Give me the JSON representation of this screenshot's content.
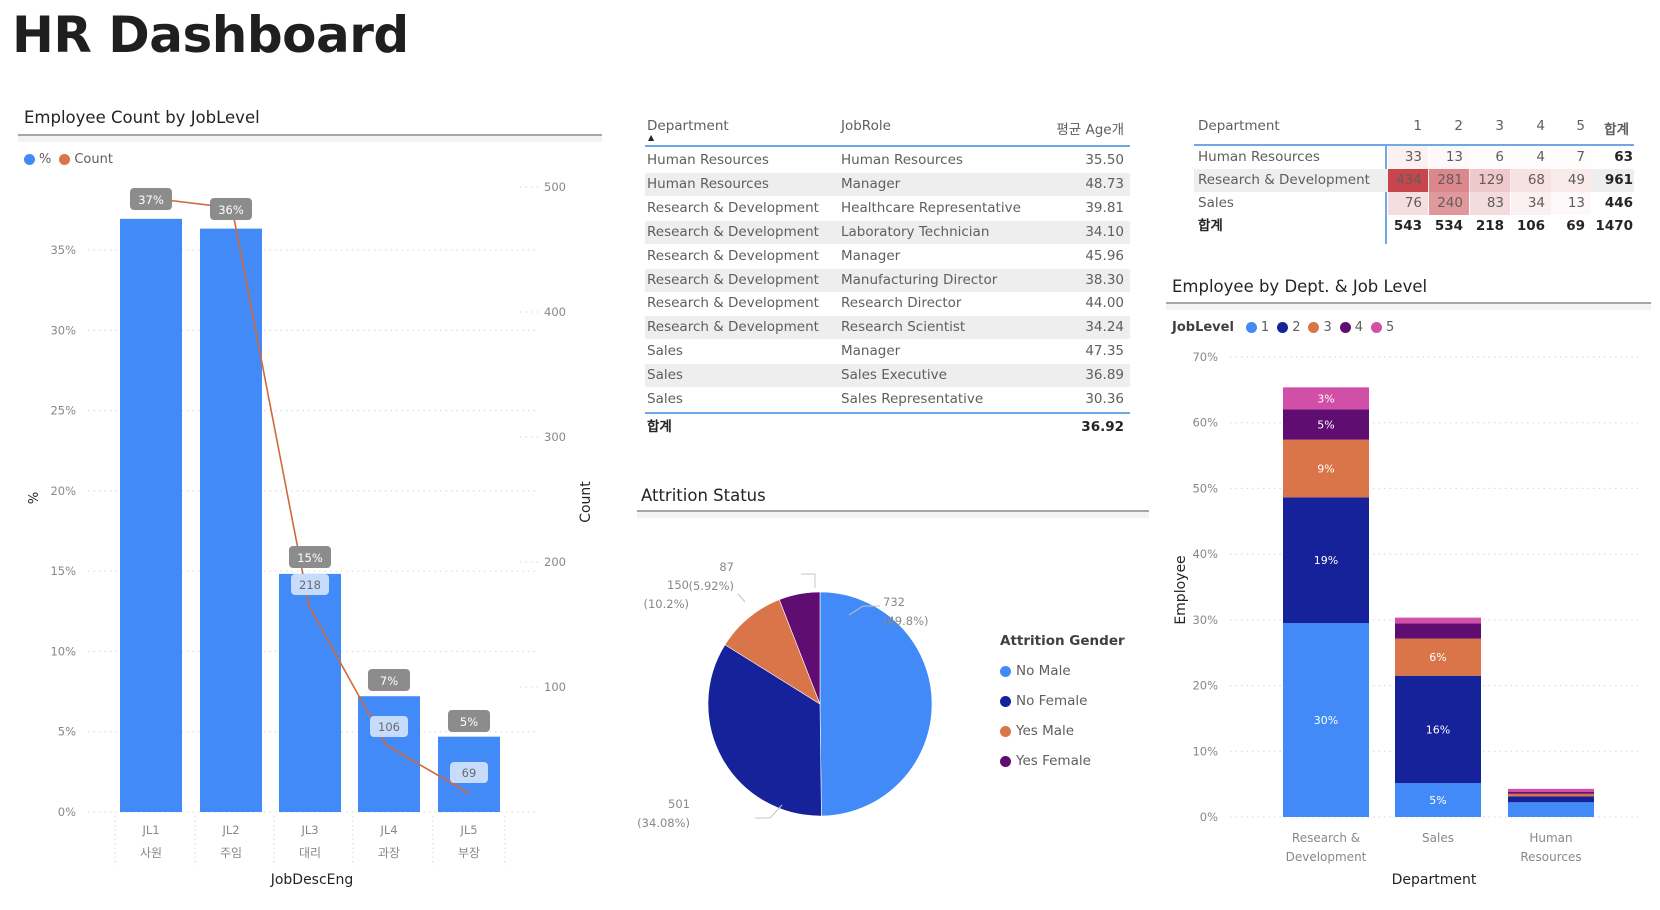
{
  "page": {
    "title": "HR Dashboard"
  },
  "colors": {
    "blue": "#418af7",
    "navy": "#16229a",
    "orange": "#d97548",
    "purple": "#5f0d70",
    "pink": "#d14fa6",
    "line": "#d0693a",
    "heat_max": "#c7454c"
  },
  "chart_data": [
    {
      "id": "jobLevelCombo",
      "type": "bar",
      "title": "Employee Count by JobLevel",
      "legend": [
        {
          "label": "%",
          "color": "#418af7"
        },
        {
          "label": "Count",
          "color": "#d97548"
        }
      ],
      "legend_position": "top-left",
      "categories": [
        "JL1",
        "JL2",
        "JL3",
        "JL4",
        "JL5"
      ],
      "category_sublabels": [
        "사원",
        "주임",
        "대리",
        "과장",
        "부장"
      ],
      "xlabel": "JobDescEng",
      "ylabel": "%",
      "y2label": "Count",
      "ylim": [
        0,
        0.37
      ],
      "y_ticks": [
        "0%",
        "5%",
        "10%",
        "15%",
        "20%",
        "25%",
        "30%",
        "35%"
      ],
      "y2lim": [
        0,
        564
      ],
      "y2_ticks": [
        "100",
        "200",
        "300",
        "400",
        "500"
      ],
      "series": [
        {
          "name": "%",
          "kind": "bar",
          "values": [
            0.3694,
            0.3633,
            0.1483,
            0.0721,
            0.0469
          ],
          "labels": [
            "37%",
            "36%",
            "15%",
            "7%",
            "5%"
          ]
        },
        {
          "name": "Count",
          "kind": "line",
          "values": [
            543,
            534,
            218,
            106,
            69
          ],
          "labels": [
            "",
            "",
            "218",
            "106",
            "69"
          ]
        }
      ],
      "grid": true
    },
    {
      "id": "attritionPie",
      "type": "pie",
      "title": "Attrition Status",
      "legend_title": "Attrition Gender",
      "legend_position": "right",
      "slices": [
        {
          "label": "No Male",
          "value": 732,
          "pct_label": "(49.8%)",
          "color": "#418af7"
        },
        {
          "label": "No Female",
          "value": 501,
          "pct_label": "(34.08%)",
          "color": "#16229a"
        },
        {
          "label": "Yes Male",
          "value": 150,
          "pct_label": "(10.2%)",
          "color": "#d97548"
        },
        {
          "label": "Yes Female",
          "value": 87,
          "pct_label": "(5.92%)",
          "color": "#5f0d70"
        }
      ]
    },
    {
      "id": "deptJobLevelStacked",
      "type": "bar",
      "stacked": true,
      "title": "Employee by Dept. & Job Level",
      "legend_title": "JobLevel",
      "legend_position": "top-left",
      "categories": [
        "Research & Development",
        "Sales",
        "Human Resources"
      ],
      "category_lines": [
        [
          "Research &",
          "Development"
        ],
        [
          "Sales"
        ],
        [
          "Human",
          "Resources"
        ]
      ],
      "xlabel": "Department",
      "ylabel": "Employee",
      "ylim": [
        0,
        0.7
      ],
      "y_ticks": [
        "0%",
        "10%",
        "20%",
        "30%",
        "40%",
        "50%",
        "60%",
        "70%"
      ],
      "grid": true,
      "series": [
        {
          "name": "1",
          "color": "#418af7",
          "values": [
            0.2952,
            0.0517,
            0.0224
          ],
          "labels": [
            "30%",
            "5%",
            ""
          ]
        },
        {
          "name": "2",
          "color": "#16229a",
          "values": [
            0.1912,
            0.1633,
            0.0088
          ],
          "labels": [
            "19%",
            "16%",
            ""
          ]
        },
        {
          "name": "3",
          "color": "#d97548",
          "values": [
            0.0878,
            0.0565,
            0.0041
          ],
          "labels": [
            "9%",
            "6%",
            ""
          ]
        },
        {
          "name": "4",
          "color": "#5f0d70",
          "values": [
            0.0463,
            0.0231,
            0.0027
          ],
          "labels": [
            "5%",
            "",
            ""
          ]
        },
        {
          "name": "5",
          "color": "#d14fa6",
          "values": [
            0.0333,
            0.0088,
            0.0048
          ],
          "labels": [
            "3%",
            "",
            ""
          ]
        }
      ]
    }
  ],
  "ageTable": {
    "headers": [
      "Department",
      "JobRole",
      "평균 Age개"
    ],
    "sort_indicator": "▲",
    "rows": [
      [
        "Human Resources",
        "Human Resources",
        "35.50"
      ],
      [
        "Human Resources",
        "Manager",
        "48.73"
      ],
      [
        "Research & Development",
        "Healthcare Representative",
        "39.81"
      ],
      [
        "Research & Development",
        "Laboratory Technician",
        "34.10"
      ],
      [
        "Research & Development",
        "Manager",
        "45.96"
      ],
      [
        "Research & Development",
        "Manufacturing Director",
        "38.30"
      ],
      [
        "Research & Development",
        "Research Director",
        "44.00"
      ],
      [
        "Research & Development",
        "Research Scientist",
        "34.24"
      ],
      [
        "Sales",
        "Manager",
        "47.35"
      ],
      [
        "Sales",
        "Sales Executive",
        "36.89"
      ],
      [
        "Sales",
        "Sales Representative",
        "30.36"
      ]
    ],
    "total_label": "합계",
    "total_value": "36.92"
  },
  "matrix": {
    "row_header": "Department",
    "columns": [
      "1",
      "2",
      "3",
      "4",
      "5",
      "합계"
    ],
    "rows": [
      {
        "label": "Human Resources",
        "values": [
          "33",
          "13",
          "6",
          "4",
          "7"
        ],
        "total": "63"
      },
      {
        "label": "Research & Development",
        "values": [
          "434",
          "281",
          "129",
          "68",
          "49"
        ],
        "total": "961"
      },
      {
        "label": "Sales",
        "values": [
          "76",
          "240",
          "83",
          "34",
          "13"
        ],
        "total": "446"
      }
    ],
    "total_label": "합계",
    "totals": [
      "543",
      "534",
      "218",
      "106",
      "69"
    ],
    "grand_total": "1470",
    "heat_max_value": 434
  }
}
